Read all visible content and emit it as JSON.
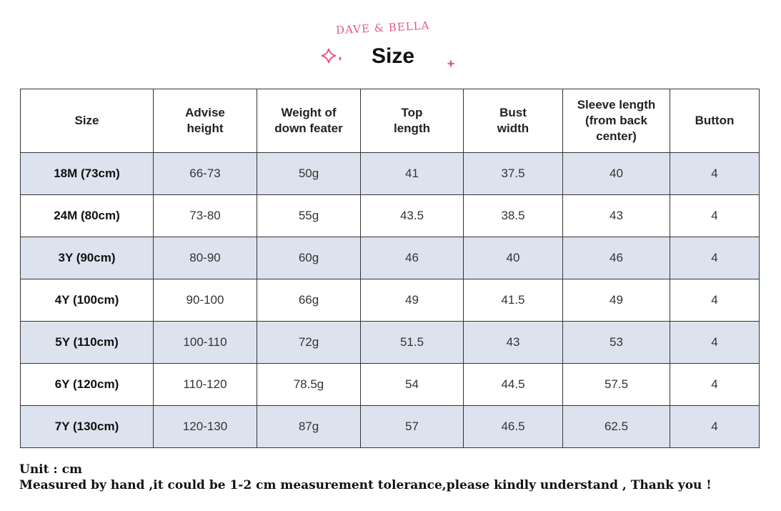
{
  "header": {
    "brand": "DAVE & BELLA",
    "title": "Size",
    "sparkle_icon": "sparkle-icon",
    "accent_color": "#e05a8f"
  },
  "table": {
    "columns": [
      "Size",
      "Advise height",
      "Weight of down feater",
      "Top length",
      "Bust width",
      "Sleeve length (from back center)",
      "Button"
    ],
    "rows": [
      [
        "18M (73cm)",
        "66-73",
        "50g",
        "41",
        "37.5",
        "40",
        "4"
      ],
      [
        "24M (80cm)",
        "73-80",
        "55g",
        "43.5",
        "38.5",
        "43",
        "4"
      ],
      [
        "3Y (90cm)",
        "80-90",
        "60g",
        "46",
        "40",
        "46",
        "4"
      ],
      [
        "4Y (100cm)",
        "90-100",
        "66g",
        "49",
        "41.5",
        "49",
        "4"
      ],
      [
        "5Y (110cm)",
        "100-110",
        "72g",
        "51.5",
        "43",
        "53",
        "4"
      ],
      [
        "6Y (120cm)",
        "110-120",
        "78.5g",
        "54",
        "44.5",
        "57.5",
        "4"
      ],
      [
        "7Y (130cm)",
        "120-130",
        "87g",
        "57",
        "46.5",
        "62.5",
        "4"
      ]
    ],
    "shade_color": "#dde3ee"
  },
  "notes": {
    "unit": "Unit : cm",
    "disclaimer": "Measured by hand ,it could be 1-2 cm measurement tolerance,please kindly understand , Thank you !"
  }
}
